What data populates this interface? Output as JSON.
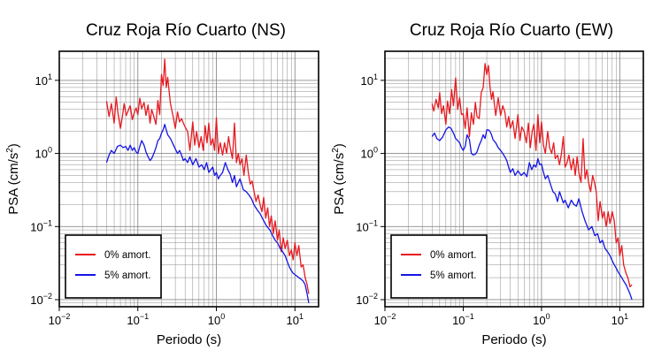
{
  "chart_data": [
    {
      "type": "line",
      "title": "Cruz Roja Río Cuarto (NS)",
      "xlabel": "Periodo (s)",
      "ylabel_main": "PSA (cm/s",
      "ylabel_sup": "2",
      "ylabel_close": ")",
      "x_scale": "log",
      "y_scale": "log",
      "xlim": [
        0.01,
        20
      ],
      "ylim": [
        0.008,
        25
      ],
      "grid": true,
      "legend_placement": "bottom-left",
      "x_ticks": [
        {
          "value": 0.01,
          "base": "10",
          "exp": "−2"
        },
        {
          "value": 0.1,
          "base": "10",
          "exp": "−1"
        },
        {
          "value": 1,
          "base": "10",
          "exp": "0"
        },
        {
          "value": 10,
          "base": "10",
          "exp": "1"
        }
      ],
      "y_ticks": [
        {
          "value": 0.01,
          "base": "10",
          "exp": "−2"
        },
        {
          "value": 0.1,
          "base": "10",
          "exp": "−1"
        },
        {
          "value": 1,
          "base": "10",
          "exp": "0"
        },
        {
          "value": 10,
          "base": "10",
          "exp": "1"
        }
      ],
      "series": [
        {
          "name": "0% amort.",
          "color": "#e8191f",
          "x": [
            0.04,
            0.043,
            0.046,
            0.05,
            0.053,
            0.056,
            0.06,
            0.063,
            0.067,
            0.071,
            0.075,
            0.08,
            0.085,
            0.09,
            0.095,
            0.1,
            0.106,
            0.112,
            0.12,
            0.127,
            0.135,
            0.143,
            0.15,
            0.16,
            0.17,
            0.18,
            0.19,
            0.2,
            0.21,
            0.22,
            0.23,
            0.24,
            0.26,
            0.28,
            0.3,
            0.32,
            0.34,
            0.36,
            0.38,
            0.4,
            0.43,
            0.46,
            0.5,
            0.53,
            0.56,
            0.6,
            0.64,
            0.68,
            0.72,
            0.76,
            0.8,
            0.85,
            0.9,
            0.95,
            1.0,
            1.06,
            1.12,
            1.2,
            1.27,
            1.35,
            1.43,
            1.5,
            1.6,
            1.7,
            1.8,
            1.9,
            2.0,
            2.12,
            2.24,
            2.4,
            2.55,
            2.7,
            2.85,
            3.0,
            3.2,
            3.4,
            3.6,
            3.8,
            4.0,
            4.25,
            4.5,
            4.75,
            5.0,
            5.3,
            5.6,
            6.0,
            6.3,
            6.7,
            7.1,
            7.5,
            8.0,
            8.5,
            9.0,
            9.5,
            10,
            10.6,
            11.2,
            12,
            12.7,
            13.5,
            14.3,
            15
          ],
          "y": [
            5.2,
            3.2,
            4.8,
            2.6,
            5.9,
            3.5,
            2.2,
            3.0,
            4.8,
            3.3,
            3.8,
            4.5,
            2.9,
            3.6,
            4.2,
            3.4,
            5.7,
            4.1,
            5.0,
            3.3,
            4.6,
            2.6,
            4.0,
            3.2,
            2.5,
            5.3,
            3.4,
            12.0,
            8.5,
            19.5,
            8.0,
            11.0,
            4.8,
            3.3,
            2.2,
            3.7,
            2.7,
            3.0,
            2.6,
            2.3,
            2.0,
            1.1,
            2.7,
            1.3,
            2.0,
            1.2,
            1.7,
            1.1,
            2.4,
            1.4,
            2.6,
            1.3,
            1.6,
            1.1,
            3.1,
            1.0,
            1.4,
            0.95,
            1.4,
            1.0,
            1.7,
            1.2,
            0.85,
            2.6,
            0.75,
            1.0,
            0.7,
            0.85,
            0.5,
            0.95,
            0.55,
            0.38,
            0.42,
            0.31,
            0.22,
            0.27,
            0.2,
            0.16,
            0.25,
            0.13,
            0.18,
            0.1,
            0.14,
            0.08,
            0.12,
            0.065,
            0.09,
            0.045,
            0.07,
            0.05,
            0.065,
            0.04,
            0.048,
            0.035,
            0.06,
            0.04,
            0.055,
            0.028,
            0.03,
            0.02,
            0.016,
            0.012
          ]
        },
        {
          "name": "5% amort.",
          "color": "#1414e6",
          "x": [
            0.04,
            0.043,
            0.046,
            0.05,
            0.055,
            0.06,
            0.065,
            0.07,
            0.075,
            0.08,
            0.085,
            0.09,
            0.095,
            0.1,
            0.106,
            0.112,
            0.12,
            0.127,
            0.135,
            0.143,
            0.15,
            0.16,
            0.17,
            0.18,
            0.19,
            0.2,
            0.21,
            0.22,
            0.23,
            0.24,
            0.26,
            0.28,
            0.3,
            0.32,
            0.34,
            0.36,
            0.38,
            0.4,
            0.43,
            0.46,
            0.5,
            0.55,
            0.6,
            0.65,
            0.7,
            0.75,
            0.8,
            0.85,
            0.9,
            0.95,
            1.0,
            1.06,
            1.12,
            1.2,
            1.3,
            1.4,
            1.5,
            1.6,
            1.7,
            1.8,
            1.9,
            2.0,
            2.2,
            2.4,
            2.6,
            2.8,
            3.0,
            3.3,
            3.6,
            4.0,
            4.4,
            4.8,
            5.2,
            5.6,
            6.0,
            6.5,
            7.0,
            7.5,
            8.0,
            8.5,
            9.0,
            9.5,
            10,
            10.6,
            11.2,
            12,
            12.7,
            13.5,
            14.3,
            15
          ],
          "y": [
            0.75,
            0.95,
            1.1,
            1.0,
            1.25,
            1.3,
            1.2,
            1.25,
            1.1,
            1.3,
            1.1,
            1.2,
            1.05,
            1.0,
            1.25,
            1.5,
            1.3,
            1.05,
            0.9,
            0.8,
            0.85,
            1.0,
            1.2,
            1.5,
            1.6,
            1.9,
            2.1,
            2.5,
            2.1,
            1.8,
            1.6,
            1.35,
            1.15,
            1.0,
            1.1,
            0.95,
            0.8,
            0.85,
            0.75,
            0.9,
            0.7,
            0.85,
            0.65,
            0.7,
            0.6,
            0.75,
            0.55,
            0.6,
            0.65,
            0.5,
            0.55,
            0.45,
            0.5,
            0.55,
            0.75,
            0.6,
            0.52,
            0.4,
            0.5,
            0.35,
            0.4,
            0.45,
            0.32,
            0.3,
            0.27,
            0.24,
            0.2,
            0.17,
            0.15,
            0.12,
            0.1,
            0.09,
            0.075,
            0.065,
            0.06,
            0.05,
            0.045,
            0.04,
            0.033,
            0.028,
            0.025,
            0.023,
            0.022,
            0.021,
            0.02,
            0.019,
            0.018,
            0.016,
            0.012,
            0.009
          ]
        }
      ]
    },
    {
      "type": "line",
      "title": "Cruz Roja Río Cuarto (EW)",
      "xlabel": "Periodo (s)",
      "ylabel_main": "PSA (cm/s",
      "ylabel_sup": "2",
      "ylabel_close": ")",
      "x_scale": "log",
      "y_scale": "log",
      "xlim": [
        0.01,
        20
      ],
      "ylim": [
        0.008,
        25
      ],
      "grid": true,
      "legend_placement": "bottom-left",
      "x_ticks": [
        {
          "value": 0.01,
          "base": "10",
          "exp": "−2"
        },
        {
          "value": 0.1,
          "base": "10",
          "exp": "−1"
        },
        {
          "value": 1,
          "base": "10",
          "exp": "0"
        },
        {
          "value": 10,
          "base": "10",
          "exp": "1"
        }
      ],
      "y_ticks": [
        {
          "value": 0.01,
          "base": "10",
          "exp": "−2"
        },
        {
          "value": 0.1,
          "base": "10",
          "exp": "−1"
        },
        {
          "value": 1,
          "base": "10",
          "exp": "0"
        },
        {
          "value": 10,
          "base": "10",
          "exp": "1"
        }
      ],
      "series": [
        {
          "name": "0% amort.",
          "color": "#e8191f",
          "x": [
            0.04,
            0.042,
            0.045,
            0.048,
            0.05,
            0.053,
            0.056,
            0.06,
            0.063,
            0.067,
            0.071,
            0.075,
            0.08,
            0.085,
            0.09,
            0.095,
            0.1,
            0.106,
            0.112,
            0.12,
            0.127,
            0.135,
            0.143,
            0.15,
            0.16,
            0.17,
            0.18,
            0.19,
            0.2,
            0.21,
            0.22,
            0.23,
            0.24,
            0.26,
            0.28,
            0.3,
            0.32,
            0.34,
            0.36,
            0.38,
            0.4,
            0.43,
            0.46,
            0.5,
            0.53,
            0.56,
            0.6,
            0.64,
            0.68,
            0.72,
            0.76,
            0.8,
            0.85,
            0.9,
            0.95,
            1.0,
            1.06,
            1.12,
            1.2,
            1.27,
            1.35,
            1.43,
            1.5,
            1.6,
            1.7,
            1.8,
            1.9,
            2.0,
            2.12,
            2.24,
            2.4,
            2.55,
            2.7,
            2.85,
            3.0,
            3.2,
            3.4,
            3.6,
            3.8,
            4.0,
            4.25,
            4.5,
            4.75,
            5.0,
            5.3,
            5.6,
            6.0,
            6.3,
            6.7,
            7.1,
            7.5,
            8.0,
            8.5,
            9.0,
            9.5,
            10,
            10.6,
            11.2,
            12,
            12.7,
            13.5,
            14.3
          ],
          "y": [
            4.8,
            3.8,
            5.5,
            4.2,
            6.8,
            3.5,
            4.5,
            2.5,
            5.2,
            3.5,
            7.5,
            4.5,
            10.8,
            4.0,
            5.8,
            3.4,
            3.5,
            2.2,
            4.2,
            1.7,
            3.6,
            2.5,
            5.0,
            3.2,
            3.0,
            6.8,
            8.0,
            17.0,
            12.0,
            16.0,
            8.0,
            5.5,
            7.0,
            3.3,
            5.8,
            3.3,
            4.5,
            3.7,
            2.3,
            3.2,
            2.2,
            2.8,
            1.6,
            3.4,
            1.5,
            2.3,
            2.0,
            1.4,
            2.6,
            1.2,
            2.0,
            2.5,
            1.1,
            3.4,
            1.4,
            2.7,
            1.3,
            1.0,
            2.0,
            1.2,
            1.0,
            1.4,
            0.85,
            0.95,
            0.7,
            1.0,
            1.7,
            0.65,
            0.75,
            0.95,
            0.6,
            0.85,
            0.5,
            0.9,
            0.55,
            0.4,
            1.6,
            0.45,
            0.6,
            0.4,
            0.3,
            0.5,
            0.4,
            0.3,
            0.12,
            0.22,
            0.13,
            0.16,
            0.1,
            0.16,
            0.11,
            0.16,
            0.12,
            0.06,
            0.07,
            0.04,
            0.055,
            0.03,
            0.023,
            0.02,
            0.015,
            0.016
          ]
        },
        {
          "name": "5% amort.",
          "color": "#1414e6",
          "x": [
            0.04,
            0.043,
            0.046,
            0.05,
            0.055,
            0.06,
            0.065,
            0.07,
            0.075,
            0.08,
            0.085,
            0.09,
            0.095,
            0.1,
            0.106,
            0.112,
            0.12,
            0.127,
            0.135,
            0.143,
            0.15,
            0.16,
            0.17,
            0.18,
            0.19,
            0.2,
            0.21,
            0.22,
            0.23,
            0.24,
            0.26,
            0.28,
            0.3,
            0.32,
            0.34,
            0.36,
            0.38,
            0.4,
            0.43,
            0.46,
            0.5,
            0.55,
            0.6,
            0.65,
            0.7,
            0.75,
            0.8,
            0.85,
            0.9,
            0.95,
            1.0,
            1.06,
            1.12,
            1.2,
            1.3,
            1.4,
            1.5,
            1.6,
            1.7,
            1.8,
            1.9,
            2.0,
            2.2,
            2.4,
            2.6,
            2.8,
            3.0,
            3.3,
            3.6,
            4.0,
            4.4,
            4.8,
            5.2,
            5.6,
            6.0,
            6.5,
            7.0,
            7.5,
            8.0,
            8.5,
            9.0,
            9.5,
            10,
            10.6,
            11.2,
            12,
            12.7,
            13.5,
            14.3
          ],
          "y": [
            1.7,
            1.9,
            1.6,
            1.5,
            1.7,
            2.1,
            2.3,
            2.2,
            1.9,
            1.6,
            1.5,
            1.4,
            1.2,
            1.1,
            1.25,
            1.8,
            1.55,
            1.0,
            0.95,
            0.98,
            1.05,
            1.3,
            1.5,
            1.8,
            1.6,
            2.1,
            2.1,
            2.0,
            1.8,
            1.55,
            1.4,
            1.2,
            1.1,
            1.0,
            0.9,
            0.8,
            0.65,
            0.55,
            0.62,
            0.5,
            0.58,
            0.5,
            0.55,
            0.48,
            0.75,
            0.6,
            0.7,
            0.65,
            0.85,
            0.7,
            0.72,
            0.55,
            0.45,
            0.5,
            0.38,
            0.3,
            0.28,
            0.22,
            0.3,
            0.25,
            0.21,
            0.23,
            0.18,
            0.23,
            0.2,
            0.19,
            0.24,
            0.16,
            0.12,
            0.09,
            0.1,
            0.075,
            0.08,
            0.06,
            0.065,
            0.05,
            0.045,
            0.04,
            0.034,
            0.03,
            0.027,
            0.024,
            0.022,
            0.02,
            0.018,
            0.016,
            0.014,
            0.012,
            0.01
          ]
        }
      ]
    }
  ]
}
